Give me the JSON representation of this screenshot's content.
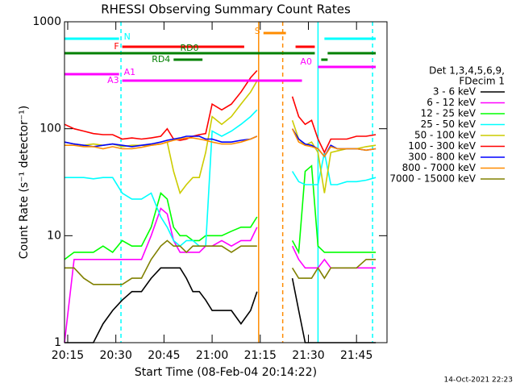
{
  "chart_data": {
    "type": "line",
    "title": "RHESSI Observing Summary Count Rates",
    "xlabel": "Start Time (08-Feb-04 20:14:22)",
    "ylabel": "Count Rate (s⁻¹ detector⁻¹)",
    "timestamp": "14-Oct-2021 22:23",
    "legend_title": [
      "Det 1,3,4,5,6,9,",
      "FDecim 1"
    ],
    "log_y": true,
    "xlim": [
      1214,
      1314.5
    ],
    "ylim": [
      1,
      1000
    ],
    "xticks": [
      {
        "value": 1215,
        "label": "20:15"
      },
      {
        "value": 1230,
        "label": "20:30"
      },
      {
        "value": 1245,
        "label": "20:45"
      },
      {
        "value": 1260,
        "label": "21:00"
      },
      {
        "value": 1275,
        "label": "21:15"
      },
      {
        "value": 1290,
        "label": "21:30"
      },
      {
        "value": 1305,
        "label": "21:45"
      }
    ],
    "yticks": [
      1,
      10,
      100,
      1000
    ],
    "x": [
      1214,
      1217,
      1220,
      1223,
      1226,
      1229,
      1232,
      1235,
      1238,
      1241,
      1244,
      1246,
      1248,
      1250,
      1252,
      1254,
      1256,
      1258,
      1260,
      1263,
      1266,
      1269,
      1272,
      1274,
      1280,
      1285,
      1287,
      1289,
      1291,
      1293,
      1295,
      1297,
      1299,
      1302,
      1305,
      1308,
      1311
    ],
    "series": [
      {
        "name": "3 - 6 keV",
        "color": "#000000",
        "values": [
          1,
          1,
          1,
          1,
          1.5,
          2,
          2.5,
          3,
          3,
          4,
          5,
          5,
          5,
          5,
          4,
          3,
          3,
          2.5,
          2,
          2,
          2,
          1.5,
          2,
          3,
          null,
          4,
          2,
          1,
          1,
          1,
          1,
          1,
          1,
          1,
          1,
          1,
          1
        ]
      },
      {
        "name": "6 - 12 keV",
        "color": "#ff00ff",
        "values": [
          1,
          6,
          6,
          6,
          6,
          6,
          6,
          6,
          6,
          10,
          18,
          16,
          9,
          7,
          7,
          7,
          7,
          8,
          8,
          9,
          8,
          9,
          9,
          12,
          null,
          8,
          6,
          5,
          5,
          5,
          6,
          5,
          5,
          5,
          5,
          5,
          5
        ]
      },
      {
        "name": "12 - 25 keV",
        "color": "#00ff00",
        "values": [
          6,
          7,
          7,
          7,
          8,
          7,
          9,
          8,
          8,
          12,
          25,
          22,
          12,
          10,
          10,
          9,
          9,
          10,
          10,
          10,
          11,
          12,
          12,
          15,
          null,
          9,
          7,
          40,
          45,
          8,
          7,
          7,
          7,
          7,
          7,
          7,
          7
        ]
      },
      {
        "name": "25 - 50 keV",
        "color": "#00ffff",
        "values": [
          35,
          35,
          35,
          34,
          35,
          35,
          25,
          22,
          22,
          25,
          15,
          12,
          9,
          8,
          9,
          9,
          8,
          8,
          95,
          85,
          95,
          110,
          130,
          150,
          null,
          40,
          32,
          30,
          30,
          30,
          60,
          30,
          30,
          32,
          32,
          33,
          35
        ]
      },
      {
        "name": "50 - 100 keV",
        "color": "#cccc00",
        "values": [
          75,
          72,
          70,
          72,
          70,
          72,
          68,
          70,
          70,
          70,
          72,
          75,
          40,
          25,
          30,
          35,
          35,
          60,
          130,
          110,
          130,
          170,
          220,
          280,
          null,
          120,
          80,
          70,
          75,
          60,
          25,
          60,
          62,
          65,
          65,
          68,
          70
        ]
      },
      {
        "name": "100 - 300 keV",
        "color": "#ff0000",
        "values": [
          110,
          100,
          95,
          90,
          88,
          88,
          80,
          82,
          80,
          82,
          85,
          100,
          80,
          78,
          80,
          85,
          88,
          90,
          170,
          150,
          170,
          220,
          300,
          350,
          null,
          200,
          130,
          110,
          120,
          80,
          60,
          80,
          80,
          80,
          85,
          85,
          88
        ]
      },
      {
        "name": "300 - 800 keV",
        "color": "#0000ff",
        "values": [
          75,
          72,
          70,
          68,
          70,
          72,
          70,
          68,
          70,
          72,
          75,
          78,
          80,
          82,
          85,
          85,
          85,
          80,
          80,
          75,
          75,
          78,
          80,
          85,
          null,
          100,
          80,
          72,
          70,
          65,
          55,
          70,
          65,
          65,
          65,
          63,
          65
        ]
      },
      {
        "name": "800 - 7000 keV",
        "color": "#ff8c00",
        "values": [
          70,
          70,
          68,
          68,
          65,
          68,
          65,
          65,
          67,
          70,
          72,
          75,
          78,
          80,
          82,
          82,
          80,
          78,
          75,
          72,
          72,
          75,
          80,
          85,
          null,
          100,
          75,
          70,
          68,
          65,
          55,
          68,
          65,
          65,
          65,
          63,
          65
        ]
      },
      {
        "name": "7000 - 15000 keV",
        "color": "#808000",
        "values": [
          5,
          5,
          4,
          3.5,
          3.5,
          3.5,
          3.5,
          4,
          4,
          6,
          8,
          9,
          8,
          8,
          7,
          8,
          8,
          8,
          8,
          8,
          7,
          8,
          8,
          8,
          null,
          5,
          4,
          4,
          4,
          5,
          4,
          5,
          5,
          5,
          5,
          6,
          6
        ]
      }
    ],
    "flags": [
      {
        "label": "N",
        "color": "#00ffff",
        "spans": [
          [
            1214,
            1231
          ],
          [
            1295,
            1311
          ]
        ]
      },
      {
        "label": "F",
        "color": "#ff0000",
        "spans": [
          [
            1232,
            1270
          ],
          [
            1286,
            1292
          ]
        ]
      },
      {
        "label": "S",
        "color": "#ff8c00",
        "spans": [
          [
            1276,
            1283
          ]
        ]
      },
      {
        "label": "RD0",
        "color": "#008000",
        "spans": [
          [
            1214,
            1292
          ],
          [
            1296,
            1311
          ]
        ]
      },
      {
        "label": "RD4",
        "color": "#008000",
        "spans": [
          [
            1248,
            1257
          ],
          [
            1294,
            1296
          ]
        ]
      },
      {
        "label": "A1",
        "color": "#ff00ff",
        "spans": [
          [
            1214,
            1231
          ]
        ]
      },
      {
        "label": "A3",
        "color": "#ff00ff",
        "spans": [
          [
            1232,
            1288
          ]
        ]
      },
      {
        "label": "A0",
        "color": "#ff00ff",
        "spans": [
          [
            1293,
            1311
          ]
        ]
      }
    ],
    "vertical_lines": [
      {
        "x": 1231.6,
        "color": "#00ffff",
        "style": "dashed"
      },
      {
        "x": 1274.5,
        "color": "#ff8c00",
        "style": "solid"
      },
      {
        "x": 1282,
        "color": "#ff8c00",
        "style": "dashed"
      },
      {
        "x": 1293,
        "color": "#00ffff",
        "style": "solid"
      },
      {
        "x": 1310,
        "color": "#00ffff",
        "style": "dashed"
      }
    ]
  }
}
